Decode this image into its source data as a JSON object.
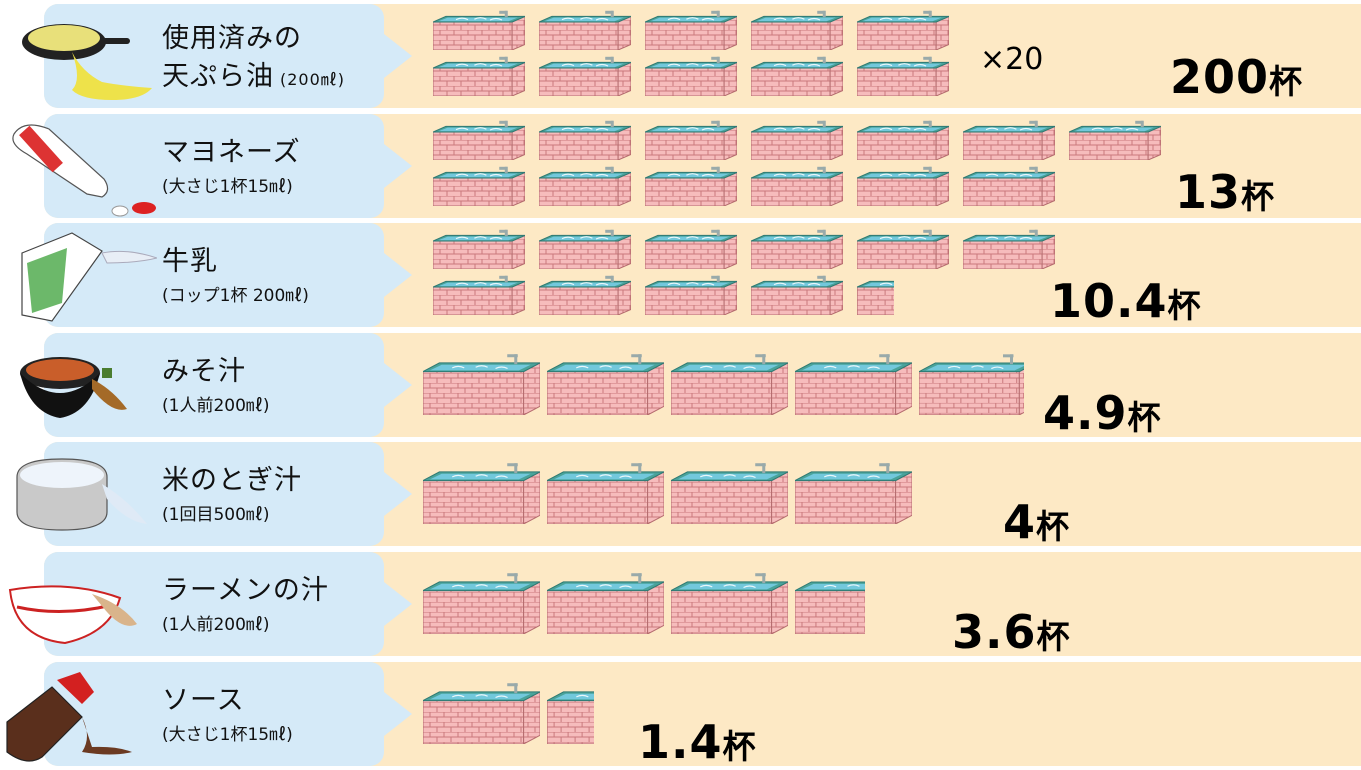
{
  "colors": {
    "row_bg": "#fde9c5",
    "label_bg": "#d5eaf8",
    "tub_side": "#f4b9b8",
    "tub_grid": "#c97a7c",
    "tub_water": "#6cc2d6",
    "tub_rim": "#4fa8a0"
  },
  "chart_data": {
    "type": "pictogram",
    "unit": "杯",
    "rows": [
      {
        "name_line1": "使用済みの",
        "name_line2": "天ぷら油",
        "measure": "(200㎖)",
        "value": 200,
        "display_count": 10,
        "multiplier": "×20",
        "value_label": "200",
        "icon": "frying-pan-icon"
      },
      {
        "name_line1": "マヨネーズ",
        "name_line2": "",
        "measure": "(大さじ1杯15㎖)",
        "value": 13,
        "display_count": 13,
        "multiplier": "",
        "value_label": "13",
        "icon": "mayonnaise-bottle-icon"
      },
      {
        "name_line1": "牛乳",
        "name_line2": "",
        "measure": "(コップ1杯 200㎖)",
        "value": 10.4,
        "display_count": 10.4,
        "multiplier": "",
        "value_label": "10.4",
        "icon": "milk-carton-icon"
      },
      {
        "name_line1": "みそ汁",
        "name_line2": "",
        "measure": "(1人前200㎖)",
        "value": 4.9,
        "display_count": 4.9,
        "multiplier": "",
        "value_label": "4.9",
        "icon": "miso-soup-bowl-icon"
      },
      {
        "name_line1": "米のとぎ汁",
        "name_line2": "",
        "measure": "(1回目500㎖)",
        "value": 4,
        "display_count": 4,
        "multiplier": "",
        "value_label": "4",
        "icon": "rice-pot-icon"
      },
      {
        "name_line1": "ラーメンの汁",
        "name_line2": "",
        "measure": "(1人前200㎖)",
        "value": 3.6,
        "display_count": 3.6,
        "multiplier": "",
        "value_label": "3.6",
        "icon": "ramen-bowl-icon"
      },
      {
        "name_line1": "ソース",
        "name_line2": "",
        "measure": "(大さじ1杯15㎖)",
        "value": 1.4,
        "display_count": 1.4,
        "multiplier": "",
        "value_label": "1.4",
        "icon": "sauce-bottle-icon"
      }
    ]
  }
}
